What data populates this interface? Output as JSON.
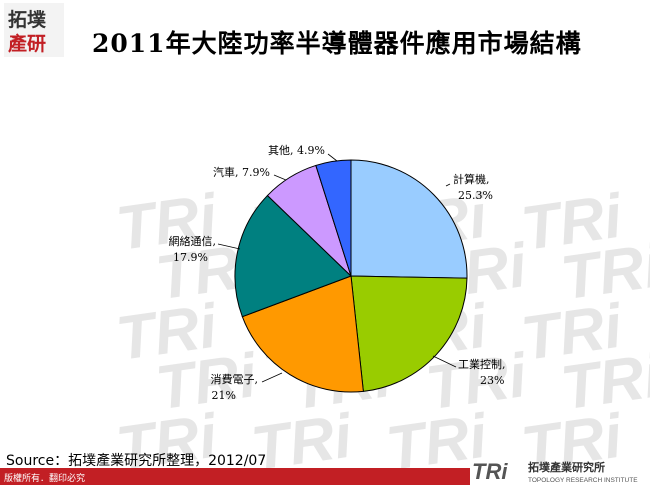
{
  "header": {
    "logo_text_top": "拓墣",
    "logo_text_bottom": "產研",
    "title": "2011年大陸功率半導體器件應用市場結構"
  },
  "chart_data": {
    "type": "pie",
    "title": "",
    "slices": [
      {
        "label": "計算機,",
        "value_label": "25.3%",
        "value": 25.3,
        "color": "#99ccff"
      },
      {
        "label": "工業控制,",
        "value_label": "23%",
        "value": 23.0,
        "color": "#99cc00"
      },
      {
        "label": "消費電子,",
        "value_label": "21%",
        "value": 21.0,
        "color": "#ff9900"
      },
      {
        "label": "網絡通信,",
        "value_label": "17.9%",
        "value": 17.9,
        "color": "#008080"
      },
      {
        "label": "汽車, 7.9%",
        "value_label": "",
        "value": 7.9,
        "color": "#cc99ff"
      },
      {
        "label": "其他, 4.9%",
        "value_label": "",
        "value": 4.9,
        "color": "#3366ff"
      }
    ],
    "start_angle_deg": 0,
    "direction": "clockwise",
    "legend": "none"
  },
  "footer": {
    "source": "Source：拓墣產業研究所整理，2012/07",
    "copyright": "版權所有．翻印必究",
    "brand_letters": "TRi",
    "brand_name": "拓墣產業研究所",
    "brand_sub": "TOPOLOGY RESEARCH INSTITUTE"
  },
  "colors": {
    "accent_red": "#c21f24",
    "watermark": "#e6e6e6"
  }
}
